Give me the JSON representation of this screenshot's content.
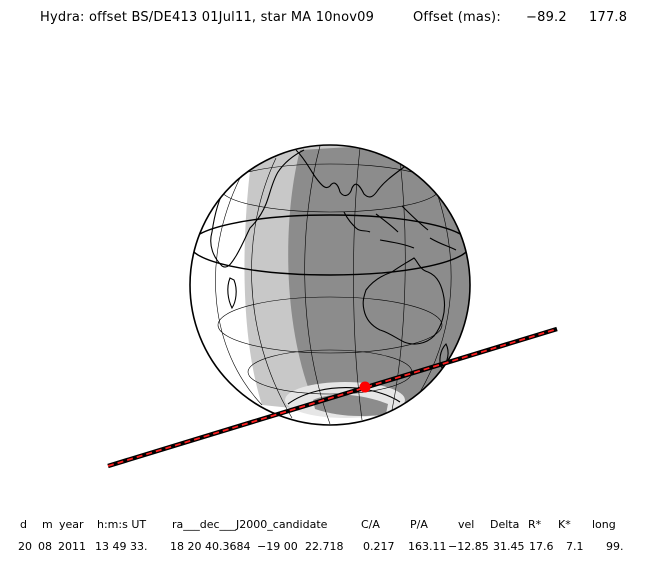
{
  "title": {
    "label": "Hydra: offset BS/DE413 01Jul11, star MA 10nov09",
    "offset_label": "Offset (mas):",
    "offset_x": "−89.2",
    "offset_y": "177.8"
  },
  "globe": {
    "day_color": "#ffffff",
    "twilight_color": "#c8c8c8",
    "night_color": "#8c8c8c",
    "track_color": "#000000",
    "track_dash_color": "#ff2020",
    "occultation_point_color": "#ff0000"
  },
  "table": {
    "headers": [
      "d",
      "m",
      "year",
      "h:m:s UT",
      "ra___dec___J2000_candidate",
      "C/A",
      "P/A",
      "vel",
      "Delta",
      "R*",
      "K*",
      "long"
    ],
    "values": [
      "20",
      "08",
      "2011",
      "13 49 33.",
      "18 20 40.3684",
      "−19 00",
      "22.718",
      "0.217",
      "163.11",
      "−12.85",
      "31.45",
      "17.6",
      "7.1",
      "99."
    ]
  }
}
